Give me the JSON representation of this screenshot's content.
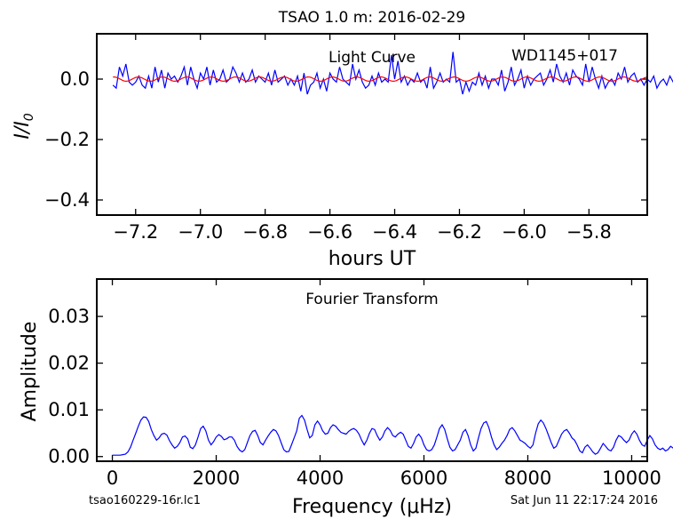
{
  "header": {
    "title": "TSAO 1.0 m:  2016-02-29"
  },
  "footer": {
    "file_name": "tsao160229-16r.lc1",
    "timestamp": "Sat Jun 11 22:17:24 2016"
  },
  "colors": {
    "data": "#0000ff",
    "model": "#ff0000",
    "axes": "#000000"
  },
  "chart_data": [
    {
      "type": "line",
      "title": "Light Curve",
      "annotation": "WD1145+017",
      "xlabel": "hours UT",
      "ylabel": "I/I0",
      "xlim": [
        -7.32,
        -5.62
      ],
      "ylim": [
        -0.45,
        0.15
      ],
      "xticks": [
        -7.2,
        -7.0,
        -6.8,
        -6.6,
        -6.4,
        -6.2,
        -6.0,
        -5.8
      ],
      "xtick_labels": [
        "−7.2",
        "−7.0",
        "−6.8",
        "−6.6",
        "−6.4",
        "−6.2",
        "−6.0",
        "−5.8"
      ],
      "yticks": [
        0.0,
        -0.2,
        -0.4
      ],
      "ytick_labels": [
        "0.0",
        "−0.2",
        "−0.4"
      ],
      "series": [
        {
          "x_start": -7.27,
          "x_step": 0.01,
          "values": [
            -0.02,
            -0.03,
            0.04,
            0.01,
            0.05,
            -0.01,
            -0.02,
            -0.01,
            0.01,
            -0.02,
            -0.03,
            0.01,
            -0.03,
            0.04,
            -0.01,
            0.03,
            -0.03,
            0.02,
            0.0,
            0.01,
            -0.01,
            0.01,
            0.04,
            -0.02,
            0.04,
            0.0,
            -0.03,
            0.02,
            0.0,
            0.04,
            -0.02,
            0.03,
            -0.01,
            0.0,
            0.03,
            -0.01,
            0.0,
            0.04,
            0.02,
            -0.01,
            0.02,
            -0.01,
            0.0,
            0.03,
            -0.01,
            0.01,
            0.0,
            -0.01,
            0.02,
            -0.02,
            0.03,
            -0.01,
            0.0,
            0.01,
            -0.02,
            0.0,
            -0.02,
            0.01,
            -0.04,
            0.02,
            -0.05,
            -0.02,
            -0.01,
            0.02,
            -0.03,
            0.0,
            -0.04,
            0.02,
            0.0,
            -0.01,
            0.04,
            0.0,
            -0.01,
            -0.02,
            0.05,
            0.0,
            0.03,
            -0.01,
            -0.03,
            -0.02,
            0.01,
            -0.02,
            0.02,
            -0.01,
            0.0,
            -0.01,
            0.08,
            0.0,
            0.06,
            -0.01,
            0.01,
            -0.02,
            0.0,
            -0.01,
            0.02,
            -0.01,
            0.0,
            -0.03,
            0.04,
            -0.03,
            -0.01,
            0.02,
            -0.01,
            0.0,
            -0.01,
            0.09,
            -0.01,
            0.0,
            -0.05,
            -0.01,
            -0.04,
            -0.01,
            -0.02,
            0.02,
            -0.02,
            0.01,
            -0.03,
            0.0,
            0.0,
            -0.02,
            0.03,
            -0.04,
            -0.01,
            0.04,
            -0.02,
            0.0,
            0.03,
            -0.03,
            0.01,
            -0.02,
            0.0,
            0.01,
            0.02,
            -0.02,
            0.0,
            0.03,
            -0.01,
            0.05,
            0.01,
            -0.01,
            0.02,
            -0.02,
            0.03,
            0.01,
            0.0,
            -0.02,
            0.05,
            -0.01,
            0.04,
            0.0,
            -0.03,
            0.01,
            -0.03,
            -0.01,
            0.0,
            -0.02,
            0.02,
            0.0,
            0.04,
            -0.01,
            0.01,
            0.02,
            -0.01,
            0.0,
            -0.02,
            0.0,
            -0.01,
            0.01,
            -0.03,
            -0.01,
            0.0,
            -0.02,
            0.01,
            -0.01,
            0.0,
            -0.02,
            0.02
          ]
        },
        {
          "style": "smooth model",
          "x_start": -7.27,
          "x_end": -5.62,
          "mean": 0.0,
          "amplitude": 0.007,
          "period_hours": 0.075
        }
      ]
    },
    {
      "type": "line",
      "title": "Fourier Transform",
      "xlabel": "Frequency (μHz)",
      "ylabel": "Amplitude",
      "xlim": [
        -300,
        10300
      ],
      "ylim": [
        -0.001,
        0.038
      ],
      "xticks": [
        0,
        2000,
        4000,
        6000,
        8000,
        10000
      ],
      "xtick_labels": [
        "0",
        "2000",
        "4000",
        "6000",
        "8000",
        "10000"
      ],
      "yticks": [
        0.0,
        0.01,
        0.02,
        0.03
      ],
      "ytick_labels": [
        "0.00",
        "0.01",
        "0.02",
        "0.03"
      ],
      "x_start": 0,
      "x_step": 50,
      "values": [
        0.0003,
        0.0003,
        0.0003,
        0.0003,
        0.0004,
        0.0005,
        0.001,
        0.002,
        0.0035,
        0.005,
        0.0065,
        0.0078,
        0.0085,
        0.0084,
        0.0075,
        0.0058,
        0.0045,
        0.0035,
        0.004,
        0.0048,
        0.005,
        0.0046,
        0.0034,
        0.0025,
        0.0018,
        0.0022,
        0.003,
        0.0042,
        0.0044,
        0.0038,
        0.002,
        0.0017,
        0.0025,
        0.0042,
        0.006,
        0.0065,
        0.0055,
        0.0035,
        0.0025,
        0.0032,
        0.0042,
        0.0047,
        0.0043,
        0.0036,
        0.0038,
        0.0042,
        0.0042,
        0.0035,
        0.0022,
        0.0014,
        0.001,
        0.0015,
        0.003,
        0.0045,
        0.0054,
        0.0056,
        0.0045,
        0.003,
        0.0025,
        0.0035,
        0.0044,
        0.0052,
        0.0058,
        0.0055,
        0.0045,
        0.003,
        0.0015,
        0.001,
        0.0011,
        0.0025,
        0.004,
        0.0055,
        0.0082,
        0.0088,
        0.0078,
        0.0058,
        0.004,
        0.0045,
        0.0068,
        0.0076,
        0.0068,
        0.0055,
        0.0048,
        0.005,
        0.0062,
        0.0068,
        0.0065,
        0.0058,
        0.0052,
        0.005,
        0.0048,
        0.0054,
        0.0058,
        0.006,
        0.0056,
        0.0048,
        0.0035,
        0.0025,
        0.0035,
        0.005,
        0.006,
        0.0058,
        0.0045,
        0.0035,
        0.0042,
        0.0055,
        0.0062,
        0.0056,
        0.0045,
        0.0042,
        0.0048,
        0.0052,
        0.0048,
        0.0035,
        0.0022,
        0.0018,
        0.0028,
        0.0042,
        0.0048,
        0.004,
        0.0025,
        0.0015,
        0.0012,
        0.0015,
        0.0025,
        0.0042,
        0.006,
        0.0068,
        0.0058,
        0.0038,
        0.002,
        0.0012,
        0.0015,
        0.0025,
        0.0035,
        0.0052,
        0.0058,
        0.0045,
        0.0025,
        0.0012,
        0.0018,
        0.004,
        0.006,
        0.0072,
        0.0075,
        0.0062,
        0.0042,
        0.0025,
        0.0015,
        0.002,
        0.0028,
        0.0035,
        0.0045,
        0.0058,
        0.0062,
        0.0055,
        0.0045,
        0.0035,
        0.0032,
        0.0028,
        0.0022,
        0.0018,
        0.0025,
        0.005,
        0.007,
        0.0078,
        0.0072,
        0.006,
        0.0045,
        0.003,
        0.0018,
        0.0022,
        0.0035,
        0.0048,
        0.0055,
        0.0058,
        0.005,
        0.004,
        0.0035,
        0.0025,
        0.0012,
        0.0008,
        0.002,
        0.0025,
        0.0018,
        0.001,
        0.0005,
        0.0008,
        0.0018,
        0.0028,
        0.0022,
        0.0015,
        0.0012,
        0.002,
        0.0035,
        0.0045,
        0.0042,
        0.0035,
        0.003,
        0.0035,
        0.0048,
        0.0055,
        0.0048,
        0.0035,
        0.0025,
        0.0022,
        0.0035,
        0.0045,
        0.0038,
        0.0025,
        0.0018,
        0.0015,
        0.0018,
        0.0012,
        0.0015,
        0.0022,
        0.0018,
        0.0015,
        0.0012,
        0.002
      ]
    }
  ]
}
